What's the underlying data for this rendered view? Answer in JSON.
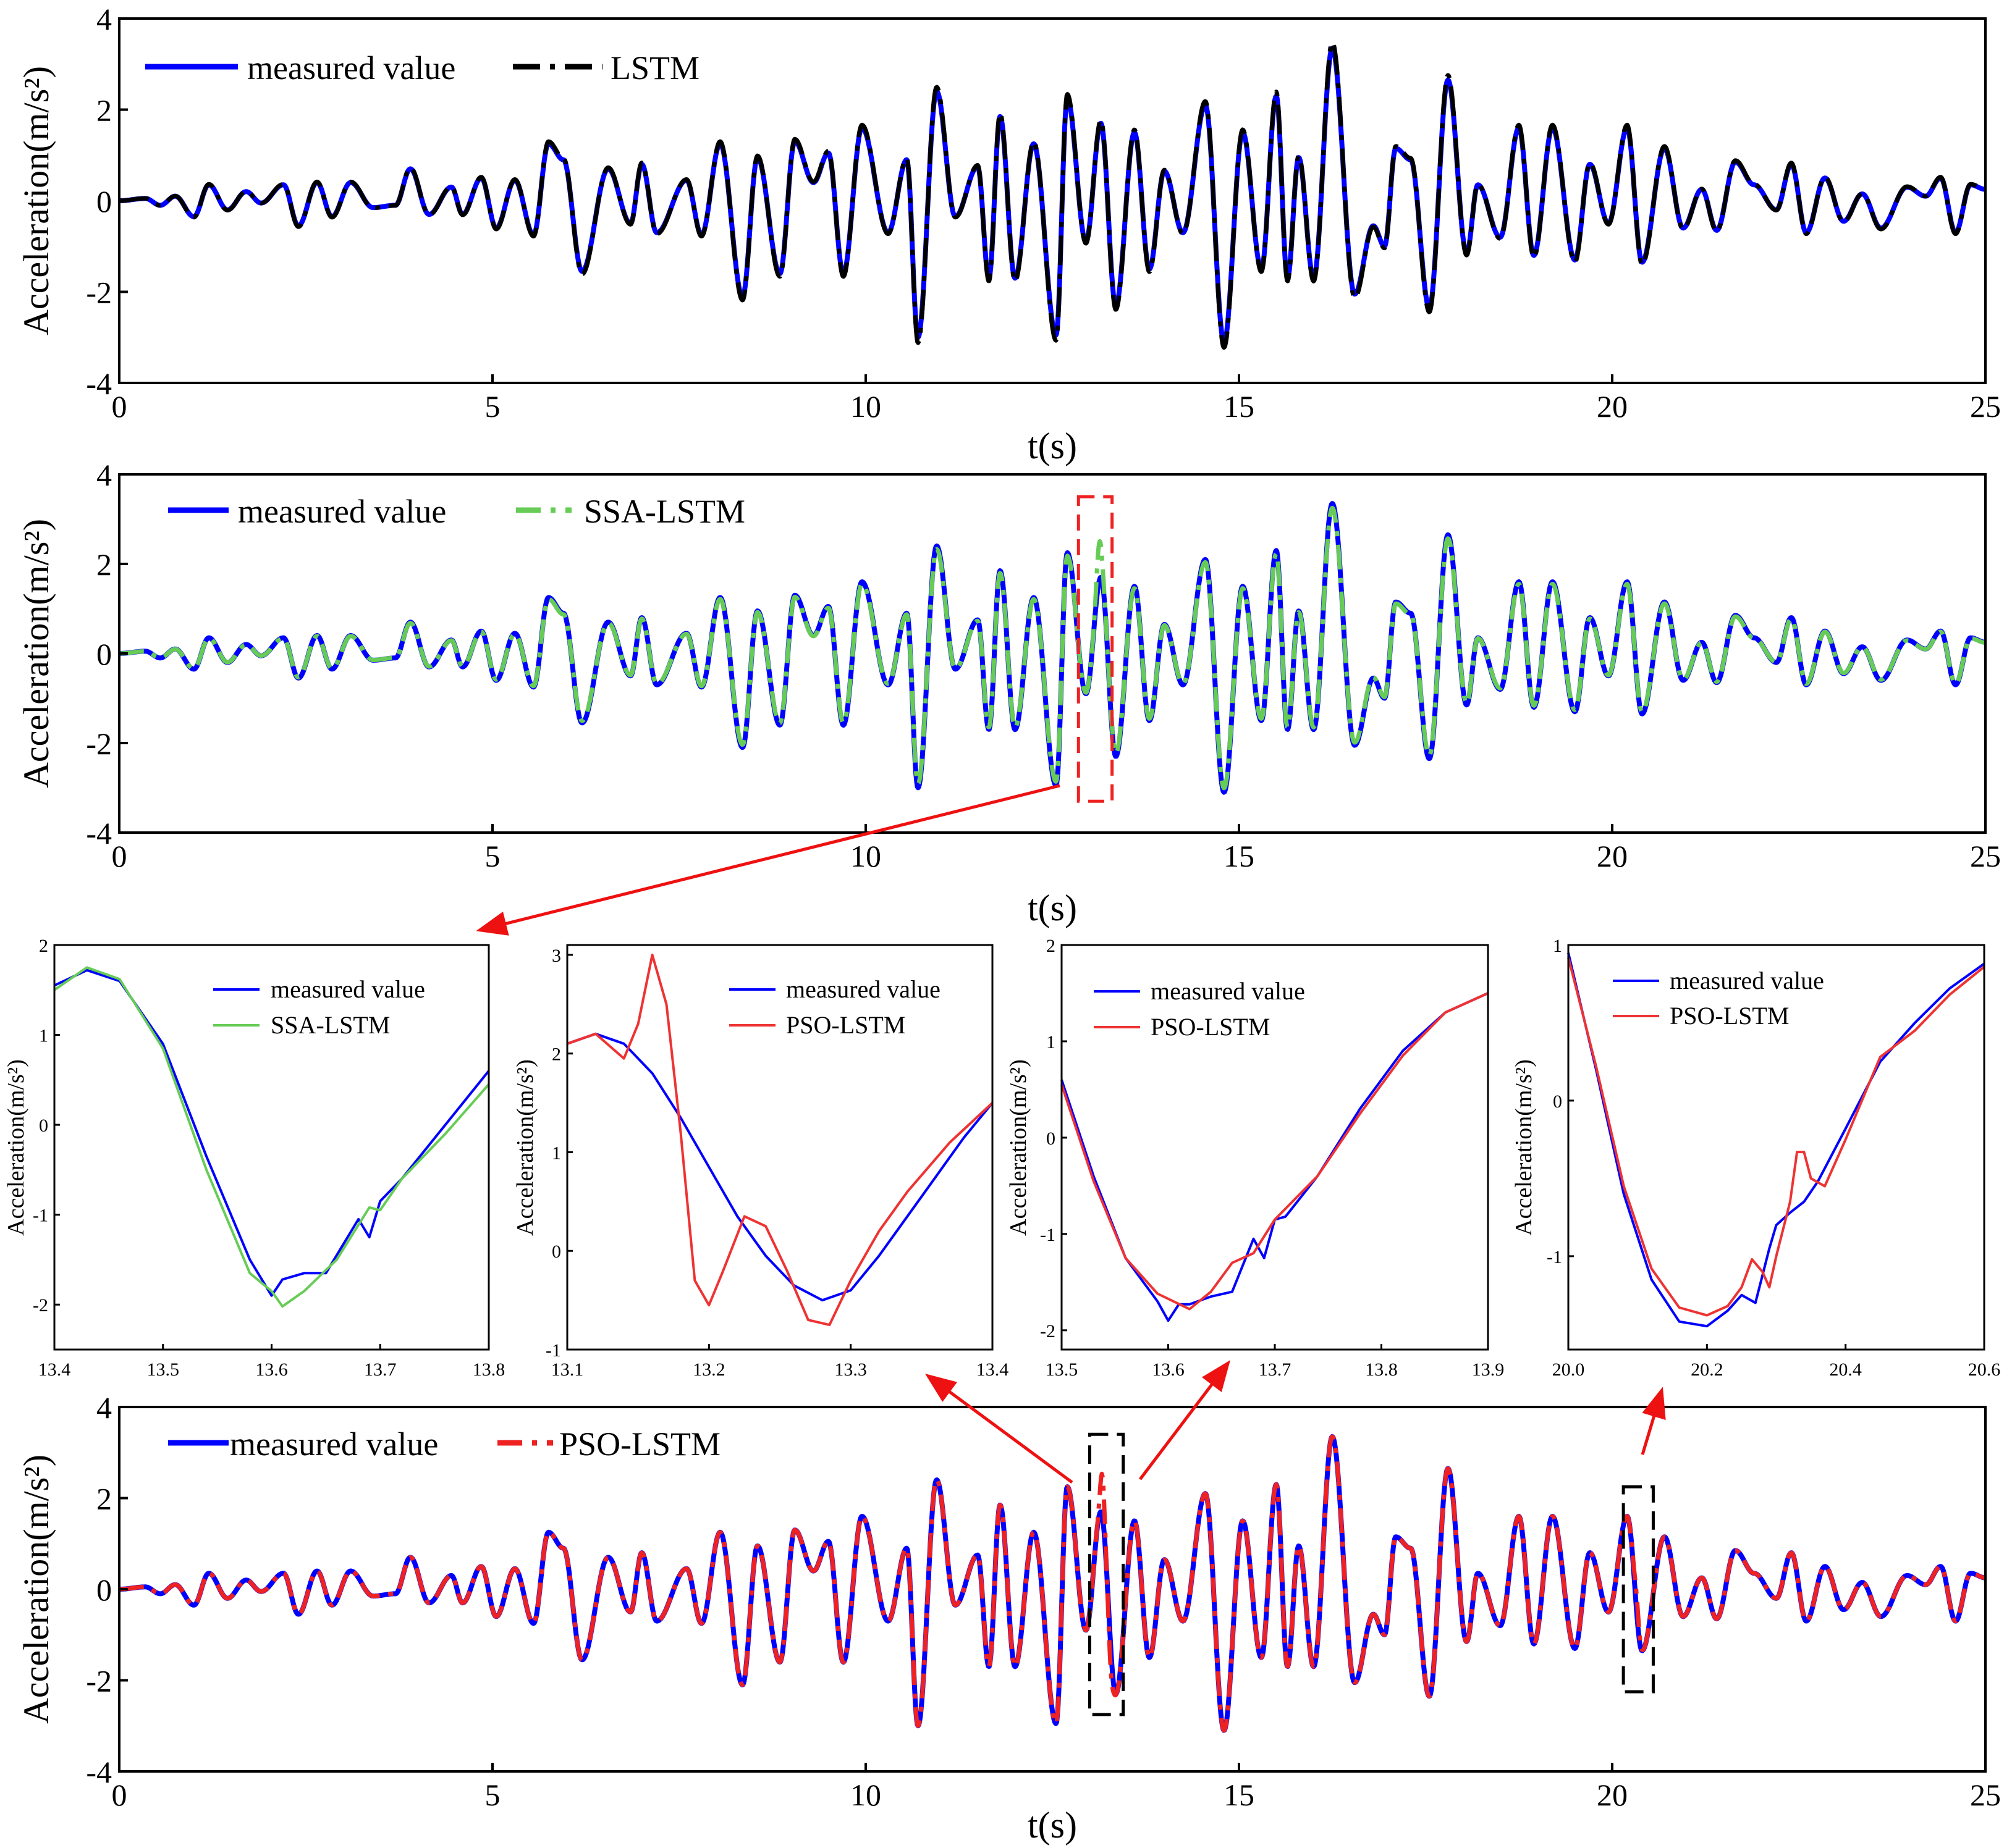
{
  "chart_data": [
    {
      "id": "p1",
      "type": "line",
      "xlabel": "t(s)",
      "ylabel": "Acceleration(m/s²)",
      "xlim": [
        0,
        25
      ],
      "ylim": [
        -4,
        4
      ],
      "xticks": [
        0,
        5,
        10,
        15,
        20,
        25
      ],
      "yticks": [
        -4,
        -2,
        0,
        2,
        4
      ],
      "legend": "top-left",
      "series": [
        {
          "name": "measured value",
          "color": "#0000ff",
          "style": "solid"
        },
        {
          "name": "LSTM",
          "color": "#000000",
          "style": "dashdot"
        }
      ]
    },
    {
      "id": "p2",
      "type": "line",
      "xlabel": "t(s)",
      "ylabel": "Acceleration(m/s²)",
      "xlim": [
        0,
        25
      ],
      "ylim": [
        -4,
        4
      ],
      "xticks": [
        0,
        5,
        10,
        15,
        20,
        25
      ],
      "yticks": [
        -4,
        -2,
        0,
        2,
        4
      ],
      "legend": "top-left",
      "series": [
        {
          "name": "measured value",
          "color": "#0000ff",
          "style": "solid"
        },
        {
          "name": "SSA-LSTM",
          "color": "#66cc55",
          "style": "dashdot"
        }
      ],
      "highlight_box": {
        "x": [
          12.85,
          13.3
        ],
        "y": [
          -3.3,
          3.5
        ],
        "color": "#ee2222"
      }
    },
    {
      "id": "z1",
      "type": "line",
      "ylabel": "Acceleration(m/s²)",
      "xlim": [
        13.4,
        13.8
      ],
      "ylim": [
        -2.5,
        2
      ],
      "xticks": [
        "13.4",
        "13.5",
        "13.6",
        "13.7",
        "13.8"
      ],
      "yticks": [
        -2,
        -1,
        0,
        1,
        2
      ],
      "legend": "top-right",
      "series": [
        {
          "name": "measured value",
          "color": "#0000ff",
          "x": [
            13.4,
            13.43,
            13.46,
            13.5,
            13.54,
            13.58,
            13.6,
            13.61,
            13.63,
            13.65,
            13.68,
            13.69,
            13.7,
            13.72,
            13.76,
            13.8
          ],
          "y": [
            1.55,
            1.72,
            1.6,
            0.9,
            -0.35,
            -1.5,
            -1.9,
            -1.72,
            -1.65,
            -1.65,
            -1.05,
            -1.25,
            -0.85,
            -0.6,
            0.0,
            0.6
          ]
        },
        {
          "name": "SSA-LSTM",
          "color": "#66cc55",
          "x": [
            13.4,
            13.43,
            13.46,
            13.5,
            13.54,
            13.58,
            13.6,
            13.61,
            13.63,
            13.66,
            13.69,
            13.7,
            13.72,
            13.76,
            13.8
          ],
          "y": [
            1.5,
            1.75,
            1.62,
            0.85,
            -0.5,
            -1.65,
            -1.85,
            -2.02,
            -1.85,
            -1.5,
            -0.92,
            -0.95,
            -0.6,
            -0.1,
            0.45
          ]
        }
      ]
    },
    {
      "id": "z2",
      "type": "line",
      "ylabel": "Acceleration(m/s²)",
      "xlim": [
        13.1,
        13.4
      ],
      "ylim": [
        -1,
        3.1
      ],
      "xticks": [
        "13.1",
        "13.2",
        "13.3",
        "13.4"
      ],
      "yticks": [
        -1,
        0,
        1,
        2,
        3
      ],
      "legend": "top-right",
      "series": [
        {
          "name": "measured value",
          "color": "#0000ff",
          "x": [
            13.1,
            13.12,
            13.14,
            13.16,
            13.18,
            13.2,
            13.22,
            13.24,
            13.26,
            13.28,
            13.3,
            13.32,
            13.34,
            13.36,
            13.38,
            13.4
          ],
          "y": [
            2.1,
            2.2,
            2.1,
            1.8,
            1.35,
            0.85,
            0.35,
            -0.05,
            -0.35,
            -0.5,
            -0.4,
            -0.05,
            0.35,
            0.75,
            1.15,
            1.5
          ]
        },
        {
          "name": "PSO-LSTM",
          "color": "#ee3333",
          "x": [
            13.1,
            13.12,
            13.14,
            13.15,
            13.16,
            13.17,
            13.18,
            13.19,
            13.2,
            13.21,
            13.225,
            13.24,
            13.255,
            13.27,
            13.285,
            13.3,
            13.32,
            13.34,
            13.37,
            13.4
          ],
          "y": [
            2.1,
            2.2,
            1.95,
            2.3,
            3.0,
            2.5,
            1.2,
            -0.3,
            -0.55,
            -0.2,
            0.35,
            0.25,
            -0.2,
            -0.7,
            -0.75,
            -0.3,
            0.2,
            0.6,
            1.1,
            1.5
          ]
        }
      ]
    },
    {
      "id": "z3",
      "type": "line",
      "ylabel": "Acceleration(m/s²)",
      "xlim": [
        13.5,
        13.9
      ],
      "ylim": [
        -2.2,
        2
      ],
      "xticks": [
        "13.5",
        "13.6",
        "13.7",
        "13.8",
        "13.9"
      ],
      "yticks": [
        -2,
        -1,
        0,
        1,
        2
      ],
      "legend": "top-left",
      "series": [
        {
          "name": "measured value",
          "color": "#0000ff",
          "x": [
            13.5,
            13.53,
            13.56,
            13.59,
            13.6,
            13.61,
            13.62,
            13.64,
            13.66,
            13.68,
            13.69,
            13.7,
            13.71,
            13.74,
            13.78,
            13.82,
            13.86,
            13.9
          ],
          "y": [
            0.6,
            -0.4,
            -1.25,
            -1.7,
            -1.9,
            -1.73,
            -1.73,
            -1.65,
            -1.6,
            -1.05,
            -1.25,
            -0.85,
            -0.82,
            -0.4,
            0.3,
            0.9,
            1.3,
            1.5
          ]
        },
        {
          "name": "PSO-LSTM",
          "color": "#ee3333",
          "x": [
            13.5,
            13.53,
            13.56,
            13.59,
            13.62,
            13.64,
            13.66,
            13.68,
            13.7,
            13.74,
            13.78,
            13.82,
            13.86,
            13.9
          ],
          "y": [
            0.55,
            -0.45,
            -1.25,
            -1.62,
            -1.78,
            -1.6,
            -1.3,
            -1.2,
            -0.85,
            -0.4,
            0.25,
            0.85,
            1.3,
            1.5
          ]
        }
      ]
    },
    {
      "id": "z4",
      "type": "line",
      "ylabel": "Acceleration(m/s²)",
      "xlim": [
        20.0,
        20.6
      ],
      "ylim": [
        -1.6,
        1
      ],
      "xticks": [
        "20.0",
        "20.2",
        "20.4",
        "20.6"
      ],
      "yticks": [
        -1,
        0,
        1
      ],
      "legend": "top-left",
      "series": [
        {
          "name": "measured value",
          "color": "#0000ff",
          "x": [
            20.0,
            20.04,
            20.08,
            20.12,
            20.16,
            20.2,
            20.23,
            20.25,
            20.27,
            20.29,
            20.3,
            20.32,
            20.34,
            20.36,
            20.4,
            20.45,
            20.5,
            20.55,
            20.6
          ],
          "y": [
            0.95,
            0.2,
            -0.6,
            -1.15,
            -1.42,
            -1.45,
            -1.35,
            -1.25,
            -1.3,
            -0.95,
            -0.8,
            -0.72,
            -0.65,
            -0.52,
            -0.18,
            0.25,
            0.5,
            0.72,
            0.88
          ]
        },
        {
          "name": "PSO-LSTM",
          "color": "#ee3333",
          "x": [
            20.0,
            20.04,
            20.08,
            20.12,
            20.16,
            20.2,
            20.23,
            20.25,
            20.265,
            20.28,
            20.29,
            20.3,
            20.32,
            20.33,
            20.34,
            20.35,
            20.37,
            20.4,
            20.45,
            20.5,
            20.55,
            20.6
          ],
          "y": [
            0.92,
            0.22,
            -0.55,
            -1.08,
            -1.33,
            -1.38,
            -1.32,
            -1.2,
            -1.02,
            -1.1,
            -1.2,
            -1.0,
            -0.65,
            -0.33,
            -0.33,
            -0.5,
            -0.55,
            -0.25,
            0.28,
            0.45,
            0.68,
            0.86
          ]
        }
      ]
    },
    {
      "id": "p3",
      "type": "line",
      "xlabel": "t(s)",
      "ylabel": "Acceleration(m/s²)",
      "xlim": [
        0,
        25
      ],
      "ylim": [
        -4,
        4
      ],
      "xticks": [
        0,
        5,
        10,
        15,
        20,
        25
      ],
      "yticks": [
        -4,
        -2,
        0,
        2,
        4
      ],
      "legend": "top-left",
      "series": [
        {
          "name": "measured value",
          "color": "#0000ff",
          "style": "solid"
        },
        {
          "name": "PSO-LSTM",
          "color": "#ee2222",
          "style": "dashdot"
        }
      ],
      "highlight_boxes": [
        {
          "x": [
            13.0,
            13.45
          ],
          "y": [
            -2.75,
            3.4
          ],
          "color": "#000000"
        },
        {
          "x": [
            20.15,
            20.55
          ],
          "y": [
            -2.25,
            2.25
          ],
          "color": "#000000"
        }
      ]
    }
  ],
  "signal": {
    "extrema_t": [
      0,
      0.35,
      0.55,
      0.75,
      1.0,
      1.2,
      1.45,
      1.7,
      1.9,
      2.2,
      2.4,
      2.65,
      2.85,
      3.1,
      3.4,
      3.7,
      3.9,
      4.15,
      4.45,
      4.6,
      4.85,
      5.05,
      5.3,
      5.55,
      5.75,
      5.95,
      6.2,
      6.55,
      6.85,
      7.0,
      7.2,
      7.6,
      7.8,
      8.05,
      8.35,
      8.55,
      8.85,
      9.05,
      9.3,
      9.5,
      9.7,
      9.95,
      10.3,
      10.55,
      10.7,
      10.95,
      11.2,
      11.5,
      11.65,
      11.8,
      12.0,
      12.25,
      12.55,
      12.7,
      12.95,
      13.15,
      13.35,
      13.6,
      13.8,
      14.0,
      14.25,
      14.55,
      14.8,
      15.05,
      15.3,
      15.5,
      15.65,
      15.8,
      16.0,
      16.25,
      16.55,
      16.8,
      16.95,
      17.1,
      17.3,
      17.55,
      17.8,
      18.05,
      18.2,
      18.5,
      18.75,
      18.95,
      19.2,
      19.5,
      19.7,
      19.95,
      20.2,
      20.4,
      20.7,
      20.95,
      21.2,
      21.4,
      21.65,
      21.9,
      22.2,
      22.4,
      22.6,
      22.85,
      23.1,
      23.35,
      23.6,
      23.95,
      24.2,
      24.4,
      24.6,
      24.8,
      25.0
    ],
    "extrema_v": [
      0,
      0.05,
      -0.1,
      0.1,
      -0.35,
      0.35,
      -0.2,
      0.2,
      -0.05,
      0.35,
      -0.55,
      0.4,
      -0.35,
      0.4,
      -0.15,
      -0.1,
      0.7,
      -0.3,
      0.3,
      -0.3,
      0.5,
      -0.6,
      0.45,
      -0.75,
      1.25,
      0.9,
      -1.55,
      0.7,
      -0.5,
      0.8,
      -0.7,
      0.45,
      -0.75,
      1.25,
      -2.1,
      0.95,
      -1.6,
      1.3,
      0.4,
      1.05,
      -1.6,
      1.6,
      -0.7,
      0.9,
      -3.0,
      2.4,
      -0.35,
      0.75,
      -1.7,
      1.85,
      -1.7,
      1.25,
      -2.95,
      2.25,
      -0.9,
      1.7,
      -2.3,
      1.5,
      -1.5,
      0.65,
      -0.7,
      2.1,
      -3.1,
      1.5,
      -1.5,
      2.3,
      -1.7,
      0.95,
      -1.7,
      3.35,
      -2.05,
      -0.55,
      -1.0,
      1.15,
      0.9,
      -2.35,
      2.65,
      -1.15,
      0.35,
      -0.8,
      1.6,
      -1.2,
      1.6,
      -1.3,
      0.8,
      -0.5,
      1.6,
      -1.35,
      1.15,
      -0.6,
      0.25,
      -0.65,
      0.85,
      0.35,
      -0.2,
      0.8,
      -0.7,
      0.5,
      -0.45,
      0.15,
      -0.6,
      0.3,
      0.1,
      0.5,
      -0.7,
      0.35,
      0.25
    ]
  }
}
